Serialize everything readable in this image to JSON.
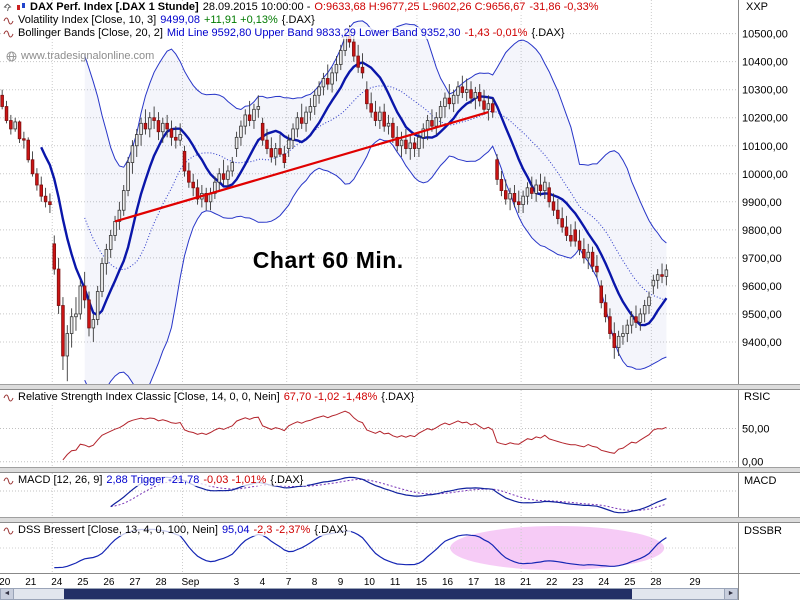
{
  "axis": {
    "workspace_label": "XXP",
    "price_ticks": [
      "10500,00",
      "10400,00",
      "10300,00",
      "10200,00",
      "10100,00",
      "10000,00",
      "9900,00",
      "9800,00",
      "9700,00",
      "9600,00",
      "9500,00",
      "9400,00"
    ]
  },
  "header": {
    "row1": {
      "title": "DAX Perf. Index [.DAX  1 Stunde]",
      "datetime": "28.09.2015 10:00:00 -",
      "ohlc": "O:9633,68  H:9677,25  L:9602,26  C:9656,67",
      "change": "-31,86 -0,33%"
    },
    "row2": {
      "name": "Volatility Index [Close, 10, 3]",
      "value": "9499,08",
      "change": "+11,91 +0,13%",
      "symbol": "{.DAX}"
    },
    "row3": {
      "name": "Bollinger Bands [Close, 20, 2]",
      "value": "Mid Line 9592,80 Upper Band 9833,29 Lower Band 9352,30",
      "change": "-1,43 -0,01%",
      "symbol": "{.DAX}"
    }
  },
  "watermark": "www.tradesignalonline.com",
  "annotation": "Chart 60 Min.",
  "panels": {
    "rsi": {
      "header": {
        "name": "Relative Strength Index Classic [Close, 14, 0, 0, Nein]",
        "change": "67,70 -1,02 -1,48%",
        "symbol": "{.DAX}"
      },
      "axis_label": "RSIC",
      "ticks": [
        "50,00",
        "0,00"
      ]
    },
    "macd": {
      "header": {
        "name": "MACD [12, 26, 9]",
        "value": "2,88 Trigger -21,78",
        "change": "-0,03 -1,01%",
        "symbol": "{.DAX}"
      },
      "axis_label": "MACD"
    },
    "dss": {
      "header": {
        "name": "DSS Bressert [Close, 13, 4, 0, 100, Nein]",
        "value": "95,04",
        "change": "-2,3 -2,37%",
        "symbol": "{.DAX}"
      },
      "axis_label": "DSSBR"
    }
  },
  "scrollbar": {
    "left_arrow": "◄",
    "right_arrow": "►"
  },
  "icons": {
    "pin": "pin-icon",
    "instrument": "candlestick-chart-icon",
    "indicator": "wave-icon",
    "globe": "globe-icon"
  },
  "chart_data": {
    "type": "candlestick+indicators",
    "symbol": ".DAX",
    "instrument": "DAX Perf. Index",
    "interval": "1 Stunde",
    "timestamp": "28.09.2015 10:00:00",
    "quote": {
      "open": 9633.68,
      "high": 9677.25,
      "low": 9602.26,
      "close": 9656.67,
      "change": -31.86,
      "change_pct": -0.33
    },
    "indicators": {
      "volatility_index": {
        "params": [
          10,
          3
        ],
        "value": 9499.08,
        "change": 11.91,
        "change_pct": 0.13
      },
      "bollinger": {
        "params": [
          20,
          2
        ],
        "mid": 9592.8,
        "upper": 9833.29,
        "lower": 9352.3,
        "change": -1.43,
        "change_pct": -0.01
      },
      "rsi_classic": {
        "params": [
          14,
          0,
          0
        ],
        "value": 67.7,
        "change": -1.02,
        "change_pct": -1.48
      },
      "macd": {
        "params": [
          12,
          26,
          9
        ],
        "value": 2.88,
        "trigger": -21.78,
        "change": -0.03,
        "change_pct": -1.01
      },
      "dss_bressert": {
        "params": [
          13,
          4,
          0,
          100
        ],
        "value": 95.04,
        "change": -2.3,
        "change_pct": -2.37
      }
    },
    "ylim": [
      9250,
      10620
    ],
    "y_ticks": [
      10500,
      10400,
      10300,
      10200,
      10100,
      10000,
      9900,
      9800,
      9700,
      9600,
      9500,
      9400
    ],
    "rsi_ticks": [
      50,
      0
    ],
    "total_slots": 170,
    "week_grid": [
      12,
      42,
      66,
      96,
      120,
      150
    ],
    "trendline": {
      "i1": 26,
      "p1": 9830,
      "i2": 112,
      "p2": 10220,
      "color": "#e00000"
    },
    "note_pos": {
      "i": 78,
      "price": 9690
    },
    "dss_highlight": {
      "cx_frac": 0.755,
      "rx_frac": 0.145,
      "fill": "#f0a8f0"
    },
    "x_labels": [
      {
        "i": 0,
        "t": "20"
      },
      {
        "i": 6,
        "t": "21"
      },
      {
        "i": 12,
        "t": "24"
      },
      {
        "i": 18,
        "t": "25"
      },
      {
        "i": 24,
        "t": "26"
      },
      {
        "i": 30,
        "t": "27"
      },
      {
        "i": 36,
        "t": "28"
      },
      {
        "i": 42,
        "t": "Sep"
      },
      {
        "i": 54,
        "t": "3"
      },
      {
        "i": 60,
        "t": "4"
      },
      {
        "i": 66,
        "t": "7"
      },
      {
        "i": 72,
        "t": "8"
      },
      {
        "i": 78,
        "t": "9"
      },
      {
        "i": 84,
        "t": "10"
      },
      {
        "i": 90,
        "t": "11"
      },
      {
        "i": 96,
        "t": "15"
      },
      {
        "i": 102,
        "t": "16"
      },
      {
        "i": 108,
        "t": "17"
      },
      {
        "i": 114,
        "t": "18"
      },
      {
        "i": 120,
        "t": "21"
      },
      {
        "i": 126,
        "t": "22"
      },
      {
        "i": 132,
        "t": "23"
      },
      {
        "i": 138,
        "t": "24"
      },
      {
        "i": 144,
        "t": "25"
      },
      {
        "i": 150,
        "t": "28"
      },
      {
        "i": 159,
        "t": "29"
      }
    ],
    "ohlc": [
      [
        10280,
        10300,
        10230,
        10240
      ],
      [
        10240,
        10260,
        10180,
        10190
      ],
      [
        10190,
        10210,
        10140,
        10160
      ],
      [
        10160,
        10200,
        10150,
        10185
      ],
      [
        10185,
        10190,
        10110,
        10125
      ],
      [
        10125,
        10150,
        10090,
        10120
      ],
      [
        10120,
        10130,
        10040,
        10050
      ],
      [
        10050,
        10080,
        9990,
        10000
      ],
      [
        10000,
        10020,
        9940,
        9960
      ],
      [
        9960,
        9990,
        9900,
        9920
      ],
      [
        9920,
        9950,
        9880,
        9900
      ],
      [
        9900,
        9930,
        9860,
        9890
      ],
      [
        9750,
        9780,
        9640,
        9660
      ],
      [
        9660,
        9700,
        9500,
        9530
      ],
      [
        9530,
        9560,
        9300,
        9350
      ],
      [
        9350,
        9460,
        9260,
        9430
      ],
      [
        9430,
        9520,
        9380,
        9490
      ],
      [
        9490,
        9560,
        9440,
        9500
      ],
      [
        9500,
        9620,
        9480,
        9600
      ],
      [
        9600,
        9650,
        9520,
        9550
      ],
      [
        9550,
        9580,
        9420,
        9450
      ],
      [
        9450,
        9500,
        9400,
        9480
      ],
      [
        9480,
        9600,
        9460,
        9580
      ],
      [
        9580,
        9700,
        9560,
        9680
      ],
      [
        9680,
        9750,
        9640,
        9730
      ],
      [
        9730,
        9800,
        9700,
        9780
      ],
      [
        9780,
        9850,
        9760,
        9830
      ],
      [
        9830,
        9900,
        9800,
        9870
      ],
      [
        9870,
        9960,
        9850,
        9940
      ],
      [
        9940,
        10060,
        9920,
        10040
      ],
      [
        10040,
        10120,
        10000,
        10100
      ],
      [
        10100,
        10160,
        10060,
        10140
      ],
      [
        10140,
        10200,
        10100,
        10180
      ],
      [
        10180,
        10230,
        10140,
        10160
      ],
      [
        10160,
        10220,
        10130,
        10200
      ],
      [
        10200,
        10240,
        10160,
        10190
      ],
      [
        10190,
        10220,
        10120,
        10150
      ],
      [
        10150,
        10200,
        10110,
        10180
      ],
      [
        10180,
        10210,
        10130,
        10160
      ],
      [
        10160,
        10190,
        10100,
        10130
      ],
      [
        10130,
        10170,
        10090,
        10120
      ],
      [
        10120,
        10180,
        10100,
        10140
      ],
      [
        10080,
        10100,
        9990,
        10010
      ],
      [
        10010,
        10040,
        9950,
        9970
      ],
      [
        9970,
        10000,
        9920,
        9950
      ],
      [
        9950,
        9980,
        9890,
        9910
      ],
      [
        9910,
        9960,
        9880,
        9930
      ],
      [
        9930,
        9950,
        9870,
        9900
      ],
      [
        9900,
        9950,
        9870,
        9930
      ],
      [
        9930,
        9990,
        9910,
        9970
      ],
      [
        9970,
        10020,
        9940,
        10000
      ],
      [
        10000,
        10050,
        9960,
        9980
      ],
      [
        9980,
        10030,
        9950,
        10010
      ],
      [
        10010,
        10060,
        9990,
        10040
      ],
      [
        10090,
        10150,
        10060,
        10130
      ],
      [
        10130,
        10190,
        10100,
        10170
      ],
      [
        10170,
        10230,
        10140,
        10210
      ],
      [
        10210,
        10260,
        10170,
        10190
      ],
      [
        10190,
        10250,
        10160,
        10230
      ],
      [
        10230,
        10280,
        10200,
        10240
      ],
      [
        10180,
        10200,
        10100,
        10120
      ],
      [
        10120,
        10160,
        10070,
        10090
      ],
      [
        10090,
        10130,
        10040,
        10060
      ],
      [
        10060,
        10110,
        10030,
        10090
      ],
      [
        10090,
        10140,
        10060,
        10070
      ],
      [
        10070,
        10100,
        10020,
        10040
      ],
      [
        10090,
        10140,
        10060,
        10120
      ],
      [
        10120,
        10180,
        10090,
        10160
      ],
      [
        10160,
        10220,
        10130,
        10200
      ],
      [
        10200,
        10250,
        10160,
        10180
      ],
      [
        10180,
        10240,
        10150,
        10220
      ],
      [
        10220,
        10270,
        10190,
        10240
      ],
      [
        10240,
        10300,
        10210,
        10280
      ],
      [
        10280,
        10330,
        10250,
        10310
      ],
      [
        10310,
        10360,
        10280,
        10340
      ],
      [
        10340,
        10390,
        10300,
        10320
      ],
      [
        10320,
        10380,
        10290,
        10360
      ],
      [
        10360,
        10420,
        10330,
        10390
      ],
      [
        10390,
        10460,
        10370,
        10440
      ],
      [
        10440,
        10510,
        10420,
        10490
      ],
      [
        10490,
        10530,
        10450,
        10470
      ],
      [
        10470,
        10500,
        10400,
        10420
      ],
      [
        10420,
        10460,
        10360,
        10380
      ],
      [
        10380,
        10430,
        10340,
        10360
      ],
      [
        10300,
        10330,
        10230,
        10250
      ],
      [
        10250,
        10290,
        10200,
        10220
      ],
      [
        10220,
        10260,
        10170,
        10190
      ],
      [
        10190,
        10240,
        10160,
        10220
      ],
      [
        10220,
        10250,
        10150,
        10170
      ],
      [
        10170,
        10210,
        10140,
        10180
      ],
      [
        10180,
        10200,
        10110,
        10130
      ],
      [
        10130,
        10170,
        10080,
        10100
      ],
      [
        10100,
        10150,
        10060,
        10120
      ],
      [
        10120,
        10160,
        10070,
        10090
      ],
      [
        10090,
        10140,
        10050,
        10110
      ],
      [
        10110,
        10130,
        10060,
        10090
      ],
      [
        10090,
        10150,
        10060,
        10130
      ],
      [
        10130,
        10180,
        10090,
        10160
      ],
      [
        10160,
        10210,
        10120,
        10190
      ],
      [
        10190,
        10230,
        10150,
        10170
      ],
      [
        10170,
        10220,
        10140,
        10200
      ],
      [
        10200,
        10260,
        10170,
        10240
      ],
      [
        10240,
        10290,
        10200,
        10270
      ],
      [
        10270,
        10320,
        10230,
        10250
      ],
      [
        10250,
        10300,
        10220,
        10280
      ],
      [
        10280,
        10330,
        10250,
        10310
      ],
      [
        10310,
        10350,
        10270,
        10290
      ],
      [
        10290,
        10340,
        10260,
        10300
      ],
      [
        10300,
        10330,
        10250,
        10270
      ],
      [
        10270,
        10310,
        10230,
        10290
      ],
      [
        10290,
        10320,
        10240,
        10260
      ],
      [
        10260,
        10300,
        10210,
        10230
      ],
      [
        10230,
        10280,
        10190,
        10250
      ],
      [
        10250,
        10270,
        10200,
        10220
      ],
      [
        10050,
        10070,
        9960,
        9980
      ],
      [
        9980,
        10010,
        9920,
        9940
      ],
      [
        9940,
        9980,
        9890,
        9910
      ],
      [
        9910,
        9950,
        9870,
        9930
      ],
      [
        9930,
        9960,
        9880,
        9900
      ],
      [
        9900,
        9940,
        9860,
        9890
      ],
      [
        9890,
        9940,
        9860,
        9920
      ],
      [
        9920,
        9970,
        9890,
        9950
      ],
      [
        9950,
        9990,
        9910,
        9930
      ],
      [
        9930,
        9980,
        9900,
        9960
      ],
      [
        9960,
        10000,
        9920,
        9940
      ],
      [
        9940,
        9990,
        9910,
        9970
      ],
      [
        9950,
        9970,
        9880,
        9900
      ],
      [
        9900,
        9930,
        9850,
        9870
      ],
      [
        9870,
        9910,
        9820,
        9840
      ],
      [
        9840,
        9880,
        9790,
        9810
      ],
      [
        9810,
        9850,
        9760,
        9780
      ],
      [
        9780,
        9820,
        9740,
        9760
      ],
      [
        9800,
        9830,
        9740,
        9760
      ],
      [
        9760,
        9800,
        9710,
        9730
      ],
      [
        9730,
        9770,
        9680,
        9700
      ],
      [
        9700,
        9750,
        9660,
        9720
      ],
      [
        9720,
        9740,
        9650,
        9670
      ],
      [
        9670,
        9710,
        9630,
        9650
      ],
      [
        9600,
        9620,
        9520,
        9540
      ],
      [
        9540,
        9570,
        9470,
        9490
      ],
      [
        9490,
        9520,
        9410,
        9430
      ],
      [
        9430,
        9470,
        9340,
        9380
      ],
      [
        9380,
        9440,
        9350,
        9420
      ],
      [
        9420,
        9460,
        9390,
        9430
      ],
      [
        9430,
        9480,
        9400,
        9460
      ],
      [
        9460,
        9510,
        9430,
        9490
      ],
      [
        9490,
        9530,
        9450,
        9470
      ],
      [
        9470,
        9520,
        9440,
        9500
      ],
      [
        9500,
        9550,
        9470,
        9530
      ],
      [
        9530,
        9580,
        9500,
        9560
      ],
      [
        9600,
        9640,
        9570,
        9620
      ],
      [
        9620,
        9660,
        9590,
        9640
      ],
      [
        9640,
        9680,
        9610,
        9634
      ],
      [
        9634,
        9677,
        9602,
        9657
      ]
    ]
  }
}
